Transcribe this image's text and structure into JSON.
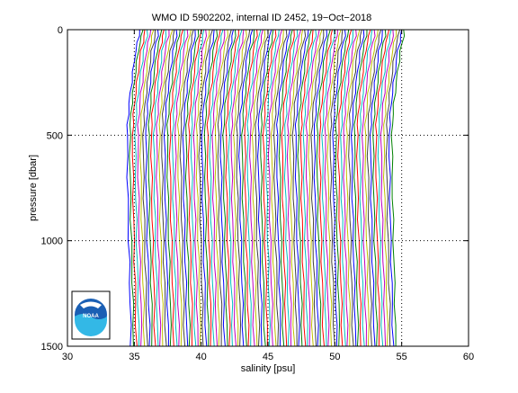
{
  "chart_data": {
    "type": "line",
    "title": "WMO ID 5902202, internal ID 2452, 19−Oct−2018",
    "xlabel": "salinity [psu]",
    "ylabel": "pressure [dbar]",
    "xlim": [
      30,
      60
    ],
    "ylim": [
      1500,
      0
    ],
    "y_reversed": true,
    "x_ticks": [
      "30",
      "35",
      "40",
      "45",
      "50",
      "55",
      "60"
    ],
    "y_ticks": [
      "0",
      "500",
      "1000",
      "1500"
    ],
    "grid": "dotted",
    "n_profiles": 100,
    "profile_offset": 0.2,
    "colors": [
      "#0000ff",
      "#008000",
      "#ff0000",
      "#00bfbf",
      "#bf00bf",
      "#bfbf00",
      "#404040"
    ],
    "base_profile": {
      "pressure": [
        0,
        30,
        60,
        100,
        150,
        200,
        250,
        300,
        350,
        400,
        450,
        500,
        600,
        700,
        800,
        900,
        1000,
        1100,
        1200,
        1300,
        1400,
        1500
      ],
      "salinity": [
        35.4,
        35.35,
        35.25,
        35.1,
        35.0,
        34.9,
        34.8,
        34.7,
        34.62,
        34.55,
        34.5,
        34.48,
        34.48,
        34.5,
        34.52,
        34.55,
        34.58,
        34.62,
        34.66,
        34.7,
        34.72,
        34.75
      ]
    }
  },
  "logo": {
    "text": "NOAA"
  }
}
